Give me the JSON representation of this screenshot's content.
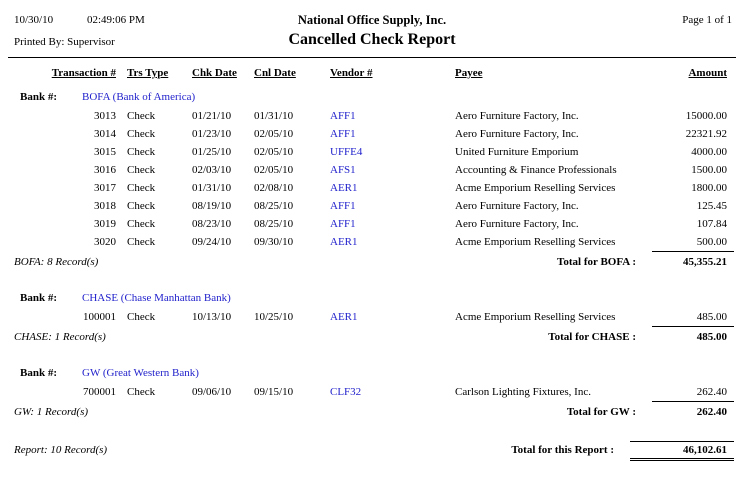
{
  "colors": {
    "accent_blue": "#2222CC",
    "text": "#000000",
    "page_bg": "#FFFFFF"
  },
  "header": {
    "date": "10/30/10",
    "time": "02:49:06 PM",
    "company": "National Office Supply, Inc.",
    "page": "Page 1 of 1",
    "printed_by": "Printed By: Supervisor",
    "title": "Cancelled Check Report"
  },
  "columns": {
    "transaction": "Transaction #",
    "trs_type": "Trs Type",
    "chk_date": "Chk Date",
    "cnl_date": "Cnl Date",
    "vendor": "Vendor #",
    "payee": "Payee",
    "amount": "Amount"
  },
  "groups": [
    {
      "bank_label": "Bank #:",
      "bank_name": "BOFA (Bank of America)",
      "rows": [
        {
          "transaction": "3013",
          "type": "Check",
          "chk_date": "01/21/10",
          "cnl_date": "01/31/10",
          "vendor": "AFF1",
          "payee": "Aero Furniture Factory, Inc.",
          "amount": "15000.00"
        },
        {
          "transaction": "3014",
          "type": "Check",
          "chk_date": "01/23/10",
          "cnl_date": "02/05/10",
          "vendor": "AFF1",
          "payee": "Aero Furniture Factory, Inc.",
          "amount": "22321.92"
        },
        {
          "transaction": "3015",
          "type": "Check",
          "chk_date": "01/25/10",
          "cnl_date": "02/05/10",
          "vendor": "UFFE4",
          "payee": "United Furniture Emporium",
          "amount": "4000.00"
        },
        {
          "transaction": "3016",
          "type": "Check",
          "chk_date": "02/03/10",
          "cnl_date": "02/05/10",
          "vendor": "AFS1",
          "payee": "Accounting & Finance Professionals",
          "amount": "1500.00"
        },
        {
          "transaction": "3017",
          "type": "Check",
          "chk_date": "01/31/10",
          "cnl_date": "02/08/10",
          "vendor": "AER1",
          "payee": "Acme Emporium Reselling Services",
          "amount": "1800.00"
        },
        {
          "transaction": "3018",
          "type": "Check",
          "chk_date": "08/19/10",
          "cnl_date": "08/25/10",
          "vendor": "AFF1",
          "payee": "Aero Furniture Factory, Inc.",
          "amount": "125.45"
        },
        {
          "transaction": "3019",
          "type": "Check",
          "chk_date": "08/23/10",
          "cnl_date": "08/25/10",
          "vendor": "AFF1",
          "payee": "Aero Furniture Factory, Inc.",
          "amount": "107.84"
        },
        {
          "transaction": "3020",
          "type": "Check",
          "chk_date": "09/24/10",
          "cnl_date": "09/30/10",
          "vendor": "AER1",
          "payee": "Acme Emporium Reselling Services",
          "amount": "500.00"
        }
      ],
      "record_count": "BOFA: 8 Record(s)",
      "total_label": "Total for BOFA :",
      "total": "45,355.21"
    },
    {
      "bank_label": "Bank #:",
      "bank_name": "CHASE (Chase Manhattan Bank)",
      "rows": [
        {
          "transaction": "100001",
          "type": "Check",
          "chk_date": "10/13/10",
          "cnl_date": "10/25/10",
          "vendor": "AER1",
          "payee": "Acme Emporium Reselling Services",
          "amount": "485.00"
        }
      ],
      "record_count": "CHASE: 1 Record(s)",
      "total_label": "Total for CHASE :",
      "total": "485.00"
    },
    {
      "bank_label": "Bank #:",
      "bank_name": "GW (Great Western Bank)",
      "rows": [
        {
          "transaction": "700001",
          "type": "Check",
          "chk_date": "09/06/10",
          "cnl_date": "09/15/10",
          "vendor": "CLF32",
          "payee": "Carlson Lighting Fixtures, Inc.",
          "amount": "262.40"
        }
      ],
      "record_count": "GW: 1 Record(s)",
      "total_label": "Total for GW :",
      "total": "262.40"
    }
  ],
  "footer": {
    "record_count": "Report: 10 Record(s)",
    "total_label": "Total for this Report :",
    "total": "46,102.61"
  }
}
